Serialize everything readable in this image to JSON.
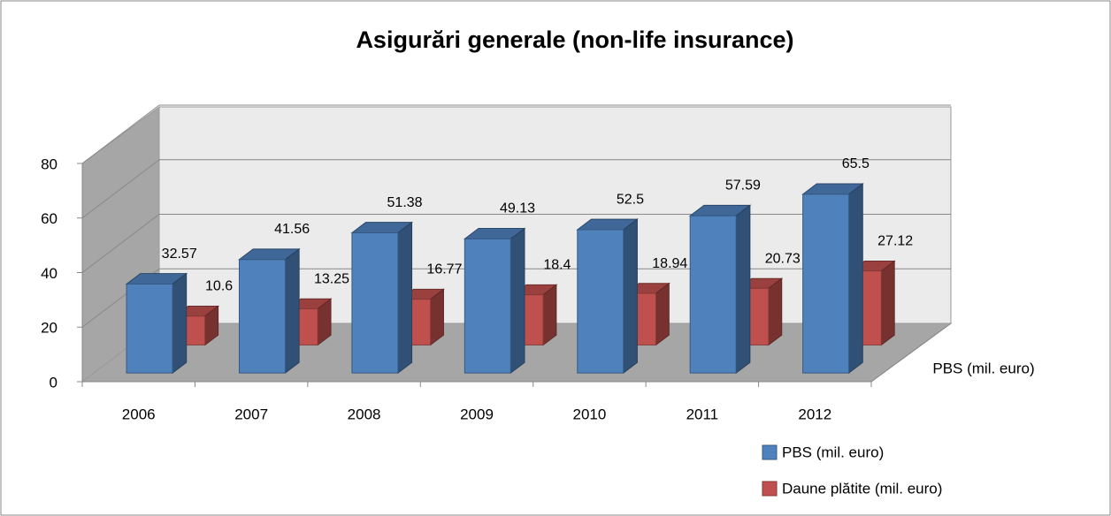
{
  "chart_data": {
    "type": "bar3d",
    "title": "Asigurări generale (non-life insurance)",
    "categories": [
      "2006",
      "2007",
      "2008",
      "2009",
      "2010",
      "2011",
      "2012"
    ],
    "series": [
      {
        "name": "PBS (mil. euro)",
        "color": "#4f81bd",
        "values": [
          32.57,
          41.56,
          51.38,
          49.13,
          52.5,
          57.59,
          65.5
        ]
      },
      {
        "name": "Daune plătite (mil. euro)",
        "color": "#c0504d",
        "values": [
          10.6,
          13.25,
          16.77,
          18.4,
          18.94,
          20.73,
          27.12
        ]
      }
    ],
    "ylim": [
      0,
      80
    ],
    "yticks": [
      0,
      20,
      40,
      60,
      80
    ],
    "grid": true,
    "legend": "bottom-right"
  }
}
